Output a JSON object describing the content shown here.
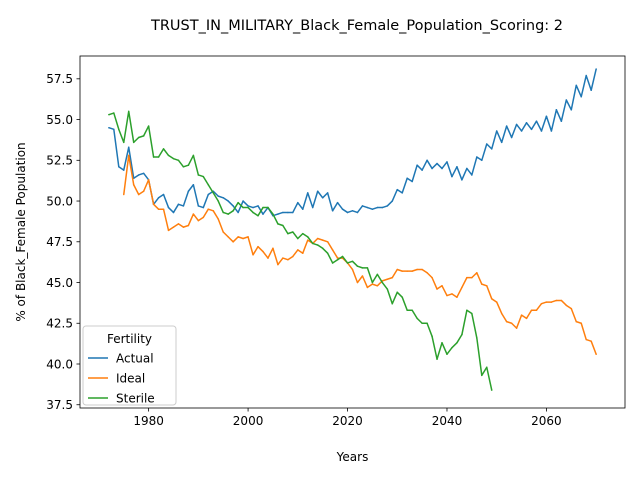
{
  "chart_data": {
    "type": "line",
    "title": "TRUST_IN_MILITARY_Black_Female_Population_Scoring: 2",
    "xlabel": "Years",
    "ylabel": "% of Black_Female Population",
    "xlim": [
      1966.2,
      2075.8
    ],
    "ylim": [
      37.3,
      58.9
    ],
    "x_ticks": [
      1980,
      2000,
      2020,
      2040,
      2060
    ],
    "x_tick_labels": [
      "1980",
      "2000",
      "2020",
      "2040",
      "2060"
    ],
    "y_ticks": [
      37.5,
      40.0,
      42.5,
      45.0,
      47.5,
      50.0,
      52.5,
      55.0,
      57.5
    ],
    "y_tick_labels": [
      "37.5",
      "40.0",
      "42.5",
      "45.0",
      "47.5",
      "50.0",
      "52.5",
      "55.0",
      "57.5"
    ],
    "grid": false,
    "legend": {
      "title": "Fertility",
      "position": "lower-left"
    },
    "series": [
      {
        "name": "Actual",
        "color": "#1f77b4",
        "x": [
          1972,
          1973,
          1974,
          1975,
          1976,
          1977,
          1978,
          1979,
          1980,
          1981,
          1982,
          1983,
          1984,
          1985,
          1986,
          1987,
          1988,
          1989,
          1990,
          1991,
          1992,
          1993,
          1994,
          1995,
          1996,
          1997,
          1998,
          1999,
          2000,
          2001,
          2002,
          2003,
          2004,
          2005,
          2006,
          2007,
          2008,
          2009,
          2010,
          2011,
          2012,
          2013,
          2014,
          2015,
          2016,
          2017,
          2018,
          2019,
          2020,
          2021,
          2022,
          2023,
          2024,
          2025,
          2026,
          2027,
          2028,
          2029,
          2030,
          2031,
          2032,
          2033,
          2034,
          2035,
          2036,
          2037,
          2038,
          2039,
          2040,
          2041,
          2042,
          2043,
          2044,
          2045,
          2046,
          2047,
          2048,
          2049,
          2050,
          2051,
          2052,
          2053,
          2054,
          2055,
          2056,
          2057,
          2058,
          2059,
          2060,
          2061,
          2062,
          2063,
          2064,
          2065,
          2066,
          2067,
          2068,
          2069,
          2070
        ],
        "values": [
          54.5,
          54.4,
          52.1,
          51.9,
          53.3,
          51.4,
          51.6,
          51.7,
          51.3,
          49.8,
          50.2,
          50.4,
          49.6,
          49.3,
          49.8,
          49.7,
          50.6,
          51.0,
          49.7,
          49.6,
          50.4,
          50.6,
          50.3,
          50.2,
          50.0,
          49.7,
          49.3,
          50.0,
          49.7,
          49.6,
          49.7,
          49.2,
          49.6,
          49.1,
          49.2,
          49.3,
          49.3,
          49.3,
          49.9,
          49.5,
          50.5,
          49.6,
          50.6,
          50.2,
          50.5,
          49.4,
          49.9,
          49.5,
          49.3,
          49.4,
          49.3,
          49.7,
          49.6,
          49.5,
          49.6,
          49.6,
          49.7,
          50.0,
          50.7,
          50.5,
          51.4,
          51.2,
          52.2,
          51.9,
          52.5,
          52.0,
          52.3,
          52.0,
          52.4,
          51.5,
          52.1,
          51.3,
          52.0,
          51.6,
          52.7,
          52.5,
          53.5,
          53.2,
          54.3,
          53.6,
          54.6,
          53.9,
          54.7,
          54.3,
          54.8,
          54.4,
          54.9,
          54.3,
          55.2,
          54.3,
          55.6,
          54.9,
          56.2,
          55.6,
          57.1,
          56.4,
          57.7,
          56.8,
          58.1
        ]
      },
      {
        "name": "Ideal",
        "color": "#ff7f0e",
        "x": [
          1975,
          1976,
          1977,
          1978,
          1979,
          1980,
          1981,
          1982,
          1983,
          1984,
          1985,
          1986,
          1987,
          1988,
          1989,
          1990,
          1991,
          1992,
          1993,
          1994,
          1995,
          1996,
          1997,
          1998,
          1999,
          2000,
          2001,
          2002,
          2003,
          2004,
          2005,
          2006,
          2007,
          2008,
          2009,
          2010,
          2011,
          2012,
          2013,
          2014,
          2015,
          2016,
          2017,
          2018,
          2019,
          2020,
          2021,
          2022,
          2023,
          2024,
          2025,
          2026,
          2027,
          2028,
          2029,
          2030,
          2031,
          2032,
          2033,
          2034,
          2035,
          2036,
          2037,
          2038,
          2039,
          2040,
          2041,
          2042,
          2043,
          2044,
          2045,
          2046,
          2047,
          2048,
          2049,
          2050,
          2051,
          2052,
          2053,
          2054,
          2055,
          2056,
          2057,
          2058,
          2059,
          2060,
          2061,
          2062,
          2063,
          2064,
          2065,
          2066,
          2067,
          2068,
          2069,
          2070
        ],
        "values": [
          50.4,
          52.8,
          51.0,
          50.4,
          50.6,
          51.3,
          49.8,
          49.5,
          49.5,
          48.2,
          48.4,
          48.6,
          48.4,
          48.5,
          49.2,
          48.8,
          49.0,
          49.5,
          49.4,
          48.9,
          48.1,
          47.8,
          47.5,
          47.8,
          47.7,
          47.8,
          46.7,
          47.2,
          46.9,
          46.5,
          47.1,
          46.1,
          46.5,
          46.4,
          46.6,
          47.0,
          46.8,
          47.6,
          47.4,
          47.7,
          47.6,
          47.5,
          47.0,
          46.5,
          46.5,
          46.2,
          45.8,
          45.0,
          45.4,
          44.7,
          44.9,
          44.8,
          45.1,
          45.2,
          45.3,
          45.8,
          45.7,
          45.7,
          45.7,
          45.8,
          45.8,
          45.6,
          45.3,
          44.6,
          44.8,
          44.2,
          44.3,
          44.1,
          44.7,
          45.3,
          45.3,
          45.6,
          44.9,
          44.8,
          44.0,
          43.8,
          43.1,
          42.6,
          42.5,
          42.2,
          43.0,
          42.8,
          43.3,
          43.3,
          43.7,
          43.8,
          43.8,
          43.9,
          43.9,
          43.6,
          43.4,
          42.6,
          42.5,
          41.5,
          41.4,
          40.6
        ]
      },
      {
        "name": "Sterile",
        "color": "#2ca02c",
        "x": [
          1972,
          1973,
          1974,
          1975,
          1976,
          1977,
          1978,
          1979,
          1980,
          1981,
          1982,
          1983,
          1984,
          1985,
          1986,
          1987,
          1988,
          1989,
          1990,
          1991,
          1992,
          1993,
          1994,
          1995,
          1996,
          1997,
          1998,
          1999,
          2000,
          2001,
          2002,
          2003,
          2004,
          2005,
          2006,
          2007,
          2008,
          2009,
          2010,
          2011,
          2012,
          2013,
          2014,
          2015,
          2016,
          2017,
          2018,
          2019,
          2020,
          2021,
          2022,
          2023,
          2024,
          2025,
          2026,
          2027,
          2028,
          2029,
          2030,
          2031,
          2032,
          2033,
          2034,
          2035,
          2036,
          2037,
          2038,
          2039,
          2040,
          2041,
          2042,
          2043,
          2044,
          2045,
          2046,
          2047,
          2048,
          2049
        ],
        "values": [
          55.3,
          55.4,
          54.4,
          53.6,
          55.5,
          53.6,
          53.9,
          54.0,
          54.6,
          52.7,
          52.7,
          53.2,
          52.8,
          52.6,
          52.5,
          52.1,
          52.2,
          52.8,
          51.6,
          51.5,
          51.0,
          50.5,
          50.0,
          49.3,
          49.2,
          49.4,
          49.9,
          49.6,
          49.6,
          49.3,
          49.1,
          49.6,
          49.6,
          49.2,
          48.6,
          48.5,
          48.0,
          48.1,
          47.7,
          48.0,
          47.8,
          47.4,
          47.3,
          47.1,
          46.8,
          46.2,
          46.4,
          46.6,
          46.2,
          46.3,
          46.0,
          45.9,
          45.9,
          45.0,
          45.5,
          45.0,
          44.6,
          43.7,
          44.4,
          44.1,
          43.3,
          43.3,
          42.8,
          42.5,
          42.5,
          41.7,
          40.3,
          41.3,
          40.6,
          41.0,
          41.3,
          41.8,
          43.3,
          43.1,
          41.6,
          39.3,
          39.8,
          38.4
        ]
      }
    ]
  }
}
